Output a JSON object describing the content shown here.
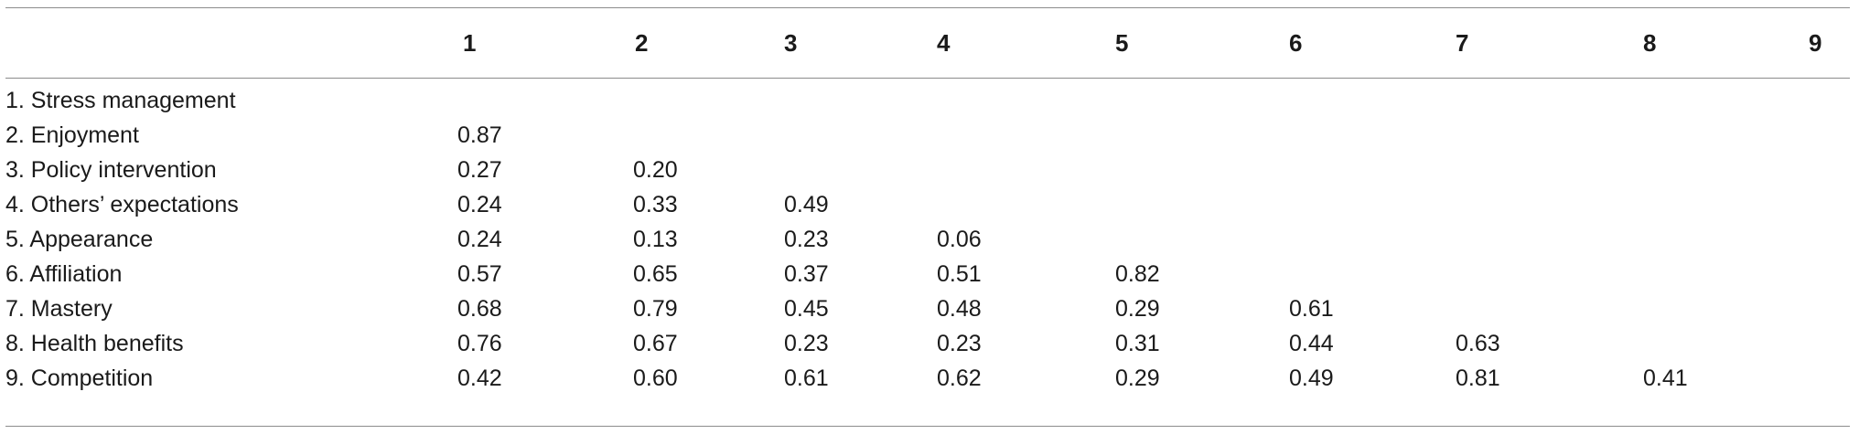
{
  "table": {
    "headers": [
      "",
      "1",
      "2",
      "3",
      "4",
      "5",
      "6",
      "7",
      "8",
      "9"
    ],
    "rows": [
      {
        "label": "1. Stress management",
        "values": [
          "",
          "",
          "",
          "",
          "",
          "",
          "",
          "",
          ""
        ]
      },
      {
        "label": "2. Enjoyment",
        "values": [
          "0.87",
          "",
          "",
          "",
          "",
          "",
          "",
          "",
          ""
        ]
      },
      {
        "label": "3. Policy intervention",
        "values": [
          "0.27",
          "0.20",
          "",
          "",
          "",
          "",
          "",
          "",
          ""
        ]
      },
      {
        "label": "4. Others’ expectations",
        "values": [
          "0.24",
          "0.33",
          "0.49",
          "",
          "",
          "",
          "",
          "",
          ""
        ]
      },
      {
        "label": "5. Appearance",
        "values": [
          "0.24",
          "0.13",
          "0.23",
          "0.06",
          "",
          "",
          "",
          "",
          ""
        ]
      },
      {
        "label": "6. Affiliation",
        "values": [
          "0.57",
          "0.65",
          "0.37",
          "0.51",
          "0.82",
          "",
          "",
          "",
          ""
        ]
      },
      {
        "label": "7. Mastery",
        "values": [
          "0.68",
          "0.79",
          "0.45",
          "0.48",
          "0.29",
          "0.61",
          "",
          "",
          ""
        ]
      },
      {
        "label": "8. Health benefits",
        "values": [
          "0.76",
          "0.67",
          "0.23",
          "0.23",
          "0.31",
          "0.44",
          "0.63",
          "",
          ""
        ]
      },
      {
        "label": "9. Competition",
        "values": [
          "0.42",
          "0.60",
          "0.61",
          "0.62",
          "0.29",
          "0.49",
          "0.81",
          "0.41",
          ""
        ]
      }
    ]
  }
}
